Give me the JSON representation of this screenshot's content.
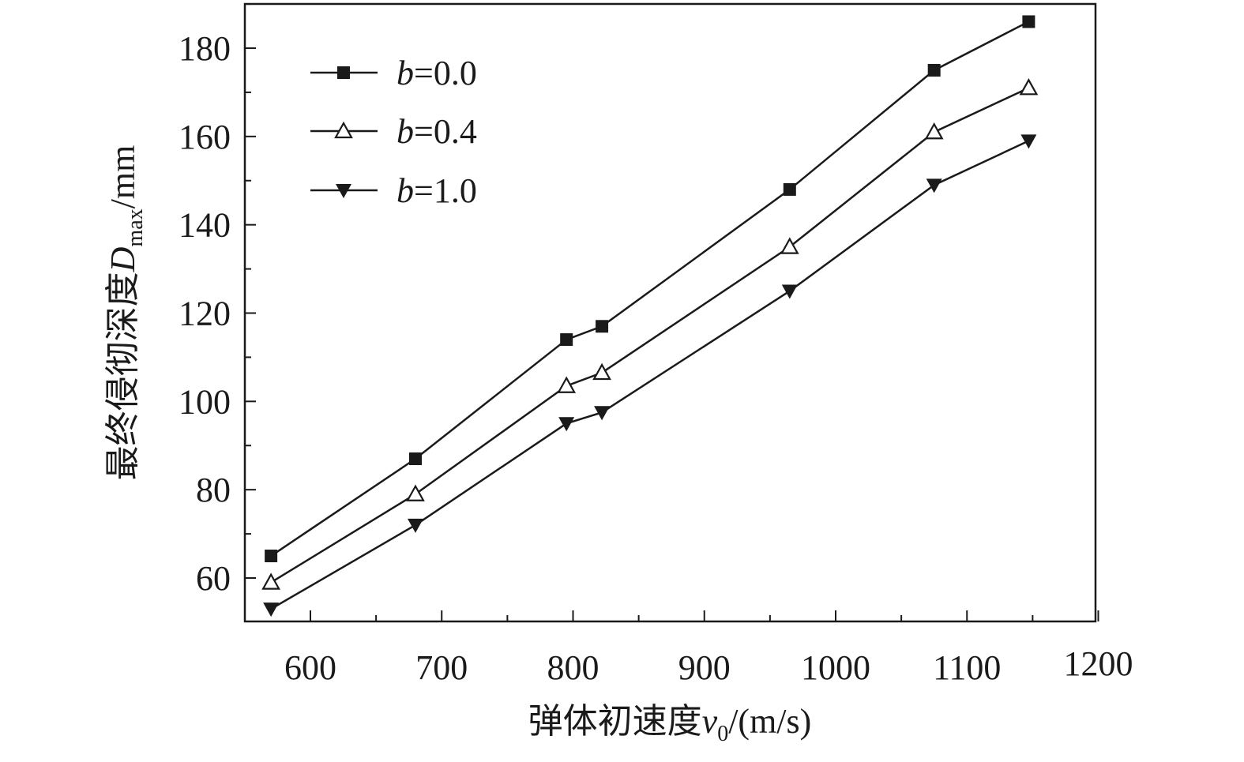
{
  "chart_data": {
    "type": "line",
    "xlabel": {
      "prefix": "弹体初速度",
      "var": "v",
      "sub": "0",
      "suffix": "/(m/s)"
    },
    "ylabel": {
      "prefix": "最终侵彻深度",
      "var": "D",
      "sub": "max",
      "suffix": "/mm"
    },
    "xlim": [
      550,
      1200
    ],
    "ylim": [
      50,
      190
    ],
    "xticks": [
      600,
      700,
      800,
      900,
      1000,
      1100,
      1200
    ],
    "yticks": [
      60,
      80,
      100,
      120,
      140,
      160,
      180
    ],
    "legend_position": "top-left",
    "grid": false,
    "x": [
      570,
      680,
      795,
      822,
      965,
      1075,
      1147
    ],
    "series": [
      {
        "name": "b=0.0",
        "label_var": "b",
        "label_rest": "=0.0",
        "marker": "square",
        "values": [
          65,
          87,
          114,
          117,
          148,
          175,
          186
        ]
      },
      {
        "name": "b=0.4",
        "label_var": "b",
        "label_rest": "=0.4",
        "marker": "triangle-up-open",
        "values": [
          59,
          79,
          103.5,
          106.5,
          135,
          161,
          171
        ]
      },
      {
        "name": "b=1.0",
        "label_var": "b",
        "label_rest": "=1.0",
        "marker": "triangle-down",
        "values": [
          53,
          72,
          95,
          97.5,
          125,
          149,
          159
        ]
      }
    ]
  }
}
